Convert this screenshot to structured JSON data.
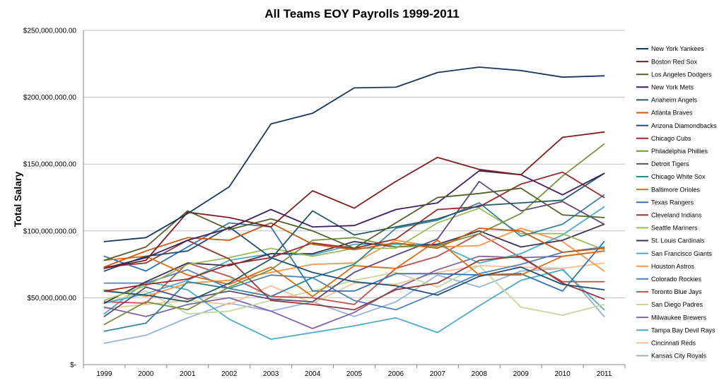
{
  "chart_data": {
    "type": "line",
    "title": "All Teams EOY Payrolls 1999-2011",
    "xlabel": "",
    "ylabel": "Total Salary",
    "x": [
      "1999",
      "2000",
      "2001",
      "2002",
      "2003",
      "2004",
      "2005",
      "2006",
      "2007",
      "2008",
      "2009",
      "2010",
      "2011"
    ],
    "ylim": [
      0,
      250000000
    ],
    "y_ticks": [
      0,
      50000000,
      100000000,
      150000000,
      200000000,
      250000000
    ],
    "y_tick_labels": [
      "$-",
      "$50,000,000.00",
      "$100,000,000.00",
      "$150,000,000.00",
      "$200,000,000.00",
      "$250,000,000.00"
    ],
    "grid": "horizontal",
    "legend_position": "right",
    "series": [
      {
        "name": "New York Yankees",
        "color": "#17375e",
        "values": [
          92000000,
          95000000,
          113000000,
          133000000,
          180000000,
          188000000,
          207000000,
          207500000,
          218500000,
          222500000,
          220000000,
          215000000,
          216000000
        ]
      },
      {
        "name": "Boston Red Sox",
        "color": "#7f1d1d",
        "values": [
          72000000,
          78000000,
          114000000,
          110000000,
          103000000,
          130000000,
          117000000,
          137000000,
          155000000,
          146000000,
          142000000,
          170000000,
          174000000
        ]
      },
      {
        "name": "Los Angeles Dodgers",
        "color": "#4f6228",
        "values": [
          78000000,
          88000000,
          115000000,
          101000000,
          109000000,
          100000000,
          87000000,
          106000000,
          125000000,
          128000000,
          132000000,
          112000000,
          110000000
        ]
      },
      {
        "name": "New York Mets",
        "color": "#3f1f5f",
        "values": [
          72000000,
          80000000,
          93000000,
          102000000,
          116000000,
          103000000,
          104000000,
          116000000,
          121000000,
          145000000,
          142000000,
          127000000,
          143000000
        ]
      },
      {
        "name": "Anaheim Angels",
        "color": "#215967",
        "values": [
          55000000,
          52000000,
          47000000,
          61000000,
          79000000,
          115000000,
          97000000,
          103000000,
          109000000,
          119000000,
          121000000,
          123000000,
          143000000
        ]
      },
      {
        "name": "Atlanta Braves",
        "color": "#c55a11",
        "values": [
          73000000,
          85000000,
          95000000,
          93000000,
          106000000,
          90000000,
          86000000,
          91000000,
          87000000,
          102000000,
          100000000,
          84000000,
          87000000
        ]
      },
      {
        "name": "Arizona Diamondbacks",
        "color": "#1f4e79",
        "values": [
          70000000,
          81000000,
          85000000,
          103000000,
          80000000,
          69000000,
          62000000,
          59000000,
          52000000,
          66000000,
          73000000,
          60000000,
          56000000
        ]
      },
      {
        "name": "Chicago Cubs",
        "color": "#9c2a2a",
        "values": [
          55000000,
          60000000,
          64000000,
          75000000,
          80000000,
          91000000,
          87000000,
          94000000,
          116000000,
          118000000,
          135000000,
          144000000,
          125000000
        ]
      },
      {
        "name": "Philadelphia Phillies",
        "color": "#76933c",
        "values": [
          30000000,
          47000000,
          41000000,
          58000000,
          71000000,
          93000000,
          95000000,
          88000000,
          89000000,
          98000000,
          113000000,
          141000000,
          165000000
        ]
      },
      {
        "name": "Detroit Tigers",
        "color": "#60497a",
        "values": [
          36000000,
          58000000,
          49000000,
          55000000,
          49000000,
          47000000,
          69000000,
          82000000,
          94000000,
          137000000,
          115000000,
          122000000,
          105000000
        ]
      },
      {
        "name": "Chicago White Sox",
        "color": "#31869b",
        "values": [
          25000000,
          31000000,
          62000000,
          57000000,
          51000000,
          65000000,
          75000000,
          102000000,
          108000000,
          121000000,
          96000000,
          105000000,
          127000000
        ]
      },
      {
        "name": "Baltimore Orioles",
        "color": "#e26b0a",
        "values": [
          78000000,
          81000000,
          67000000,
          60000000,
          73000000,
          51000000,
          74000000,
          72000000,
          93000000,
          67000000,
          67000000,
          81000000,
          85000000
        ]
      },
      {
        "name": "Texas Rangers",
        "color": "#2e75b6",
        "values": [
          81000000,
          70000000,
          88000000,
          106000000,
          103000000,
          55000000,
          55000000,
          68000000,
          68000000,
          67000000,
          68000000,
          55000000,
          92000000
        ]
      },
      {
        "name": "Cleveland Indians",
        "color": "#953735",
        "values": [
          73000000,
          76000000,
          93000000,
          79000000,
          48000000,
          45000000,
          41000000,
          56000000,
          61000000,
          78000000,
          81000000,
          61000000,
          49000000
        ]
      },
      {
        "name": "Seattle Mariners",
        "color": "#9bbb59",
        "values": [
          48000000,
          59000000,
          75000000,
          80000000,
          87000000,
          81000000,
          87000000,
          87000000,
          106000000,
          117000000,
          98000000,
          98000000,
          86000000
        ]
      },
      {
        "name": "St. Louis Cardinals",
        "color": "#403151",
        "values": [
          46000000,
          62000000,
          76000000,
          74000000,
          83000000,
          83000000,
          92000000,
          88000000,
          90000000,
          100000000,
          88000000,
          93000000,
          105000000
        ]
      },
      {
        "name": "San Francisco Giants",
        "color": "#4bacc6",
        "values": [
          46000000,
          53000000,
          63000000,
          78000000,
          83000000,
          82000000,
          90000000,
          90000000,
          90000000,
          76000000,
          83000000,
          97000000,
          118000000
        ]
      },
      {
        "name": "Houston Astros",
        "color": "#f79646",
        "values": [
          56000000,
          51000000,
          61000000,
          63000000,
          69000000,
          75000000,
          76000000,
          93000000,
          88000000,
          89000000,
          102000000,
          92000000,
          70000000
        ]
      },
      {
        "name": "Colorado Rockies",
        "color": "#4f81bd",
        "values": [
          61000000,
          61000000,
          71000000,
          57000000,
          67000000,
          65000000,
          48000000,
          41000000,
          54000000,
          68000000,
          75000000,
          84000000,
          88000000
        ]
      },
      {
        "name": "Toronto Blue Jays",
        "color": "#c0504d",
        "values": [
          47000000,
          46000000,
          76000000,
          66000000,
          51000000,
          50000000,
          45000000,
          72000000,
          81000000,
          98000000,
          80000000,
          62000000,
          62000000
        ]
      },
      {
        "name": "San Diego Padres",
        "color": "#c4d79b",
        "values": [
          46000000,
          55000000,
          38000000,
          40000000,
          48000000,
          55000000,
          63000000,
          69000000,
          58000000,
          74000000,
          43000000,
          37000000,
          45000000
        ]
      },
      {
        "name": "Milwaukee Brewers",
        "color": "#8064a2",
        "values": [
          43000000,
          36000000,
          45000000,
          50000000,
          40000000,
          27000000,
          39000000,
          57000000,
          71000000,
          81000000,
          80000000,
          81000000,
          85000000
        ]
      },
      {
        "name": "Tampa Bay Devil Rays",
        "color": "#4aacc5",
        "values": [
          38000000,
          62000000,
          56000000,
          34000000,
          19000000,
          24000000,
          29000000,
          35000000,
          24000000,
          44000000,
          63000000,
          71000000,
          41000000
        ]
      },
      {
        "name": "Cincinnati Reds",
        "color": "#fac090",
        "values": [
          42000000,
          45000000,
          48000000,
          45000000,
          59000000,
          46000000,
          61000000,
          60000000,
          69000000,
          74000000,
          73000000,
          72000000,
          76000000
        ]
      },
      {
        "name": "Kansas City Royals",
        "color": "#95b3d7",
        "values": [
          16000000,
          22000000,
          35000000,
          46000000,
          40000000,
          47000000,
          36000000,
          47000000,
          67000000,
          58000000,
          70000000,
          72000000,
          36000000
        ]
      }
    ]
  }
}
